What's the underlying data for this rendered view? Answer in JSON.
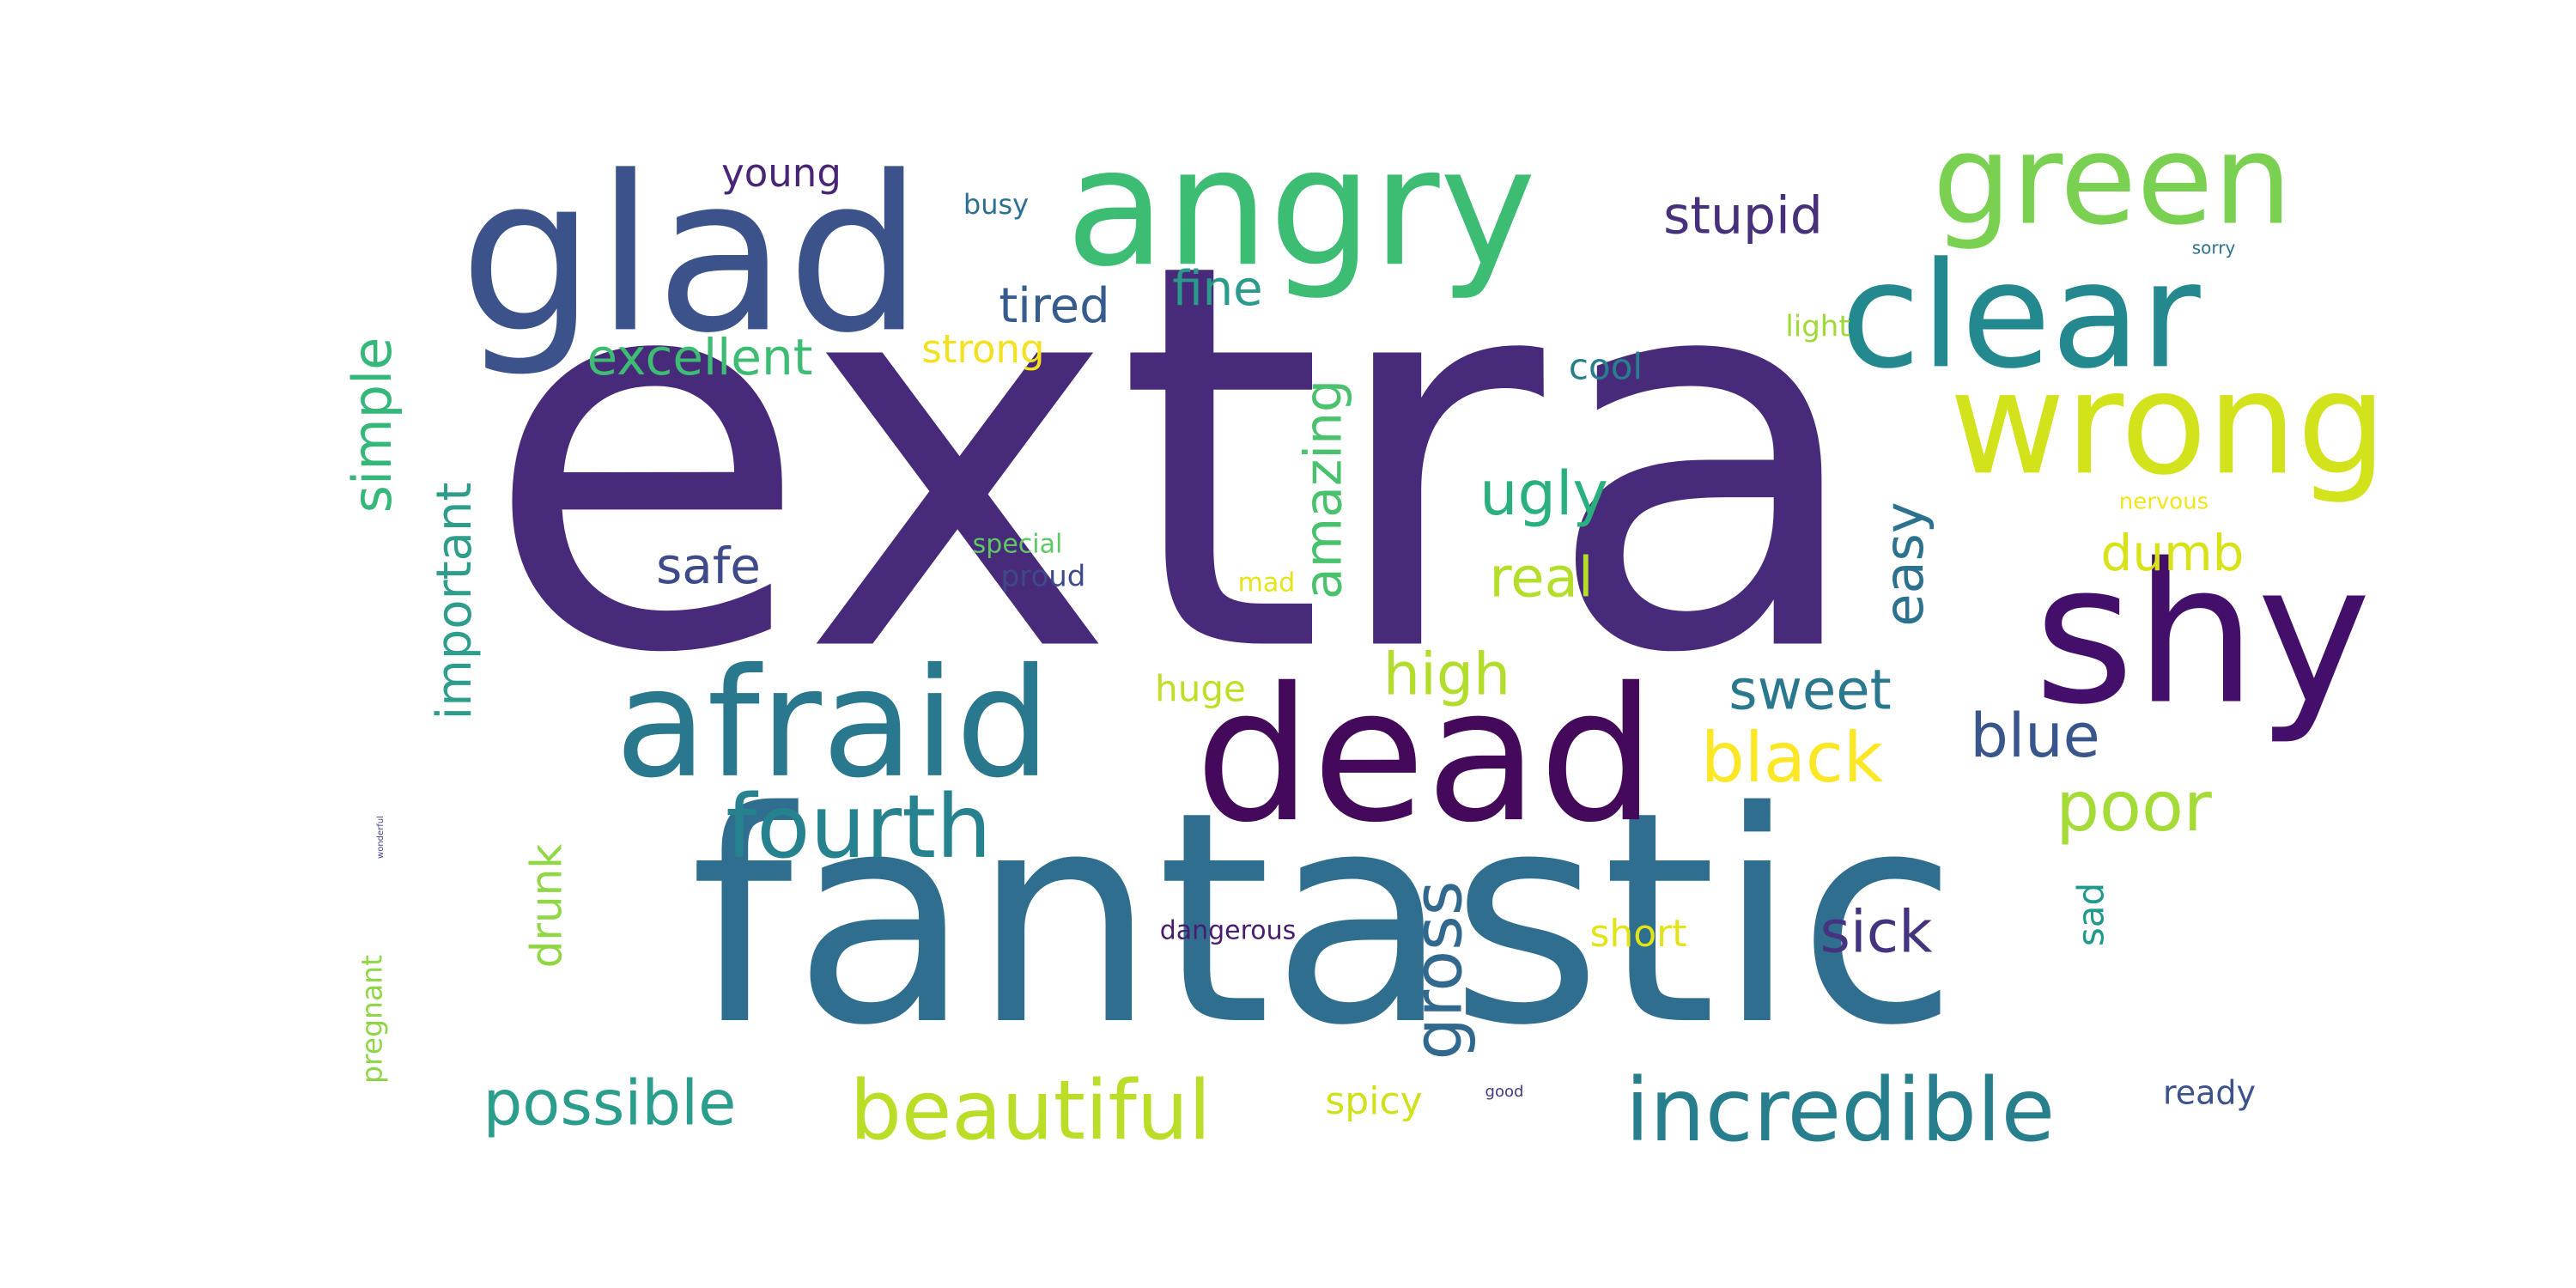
{
  "words": [
    {
      "text": "extra",
      "color": "#472a7a",
      "rotated": false
    },
    {
      "text": "fantastic",
      "color": "#2f6e8e",
      "rotated": false
    },
    {
      "text": "glad",
      "color": "#3b528b",
      "rotated": false
    },
    {
      "text": "angry",
      "color": "#3dbc74",
      "rotated": false
    },
    {
      "text": "clear",
      "color": "#23898e",
      "rotated": false
    },
    {
      "text": "green",
      "color": "#7ad151",
      "rotated": false
    },
    {
      "text": "wrong",
      "color": "#d2e21b",
      "rotated": false
    },
    {
      "text": "shy",
      "color": "#440f6a",
      "rotated": false
    },
    {
      "text": "dead",
      "color": "#44095a",
      "rotated": false
    },
    {
      "text": "afraid",
      "color": "#2a788e",
      "rotated": false
    },
    {
      "text": "simple",
      "color": "#35b779",
      "rotated": true
    },
    {
      "text": "amazing",
      "color": "#4ac16d",
      "rotated": true
    },
    {
      "text": "important",
      "color": "#2e9d8c",
      "rotated": true
    },
    {
      "text": "excellent",
      "color": "#3ebc73",
      "rotated": false
    },
    {
      "text": "strong",
      "color": "#f3e01f",
      "rotated": false
    },
    {
      "text": "tired",
      "color": "#365c8d",
      "rotated": false
    },
    {
      "text": "fine",
      "color": "#2a9b8b",
      "rotated": false
    },
    {
      "text": "young",
      "color": "#482576",
      "rotated": false
    },
    {
      "text": "busy",
      "color": "#2d708e",
      "rotated": false
    },
    {
      "text": "stupid",
      "color": "#46307c",
      "rotated": false
    },
    {
      "text": "light",
      "color": "#9fda3a",
      "rotated": false
    },
    {
      "text": "sorry",
      "color": "#2d718e",
      "rotated": false
    },
    {
      "text": "cool",
      "color": "#277f8e",
      "rotated": false
    },
    {
      "text": "ugly",
      "color": "#2ab07f",
      "rotated": false
    },
    {
      "text": "nervous",
      "color": "#f1e51d",
      "rotated": false
    },
    {
      "text": "dumb",
      "color": "#d8e219",
      "rotated": false
    },
    {
      "text": "easy",
      "color": "#2c728e",
      "rotated": true
    },
    {
      "text": "real",
      "color": "#b5de2b",
      "rotated": false
    },
    {
      "text": "safe",
      "color": "#3e4a89",
      "rotated": false
    },
    {
      "text": "special",
      "color": "#5ec962",
      "rotated": false
    },
    {
      "text": "proud",
      "color": "#3e4989",
      "rotated": false
    },
    {
      "text": "mad",
      "color": "#e5e419",
      "rotated": false
    },
    {
      "text": "high",
      "color": "#b2dd2d",
      "rotated": false
    },
    {
      "text": "huge",
      "color": "#bddf26",
      "rotated": false
    },
    {
      "text": "sweet",
      "color": "#2a788e",
      "rotated": false
    },
    {
      "text": "black",
      "color": "#fde725",
      "rotated": false
    },
    {
      "text": "blue",
      "color": "#39568c",
      "rotated": false
    },
    {
      "text": "poor",
      "color": "#a5db36",
      "rotated": false
    },
    {
      "text": "fourth",
      "color": "#26828e",
      "rotated": false
    },
    {
      "text": "gross",
      "color": "#31688e",
      "rotated": true
    },
    {
      "text": "sick",
      "color": "#46337f",
      "rotated": false
    },
    {
      "text": "drunk",
      "color": "#8fd744",
      "rotated": true
    },
    {
      "text": "dangerous",
      "color": "#481c6e",
      "rotated": false
    },
    {
      "text": "short",
      "color": "#e2e418",
      "rotated": false
    },
    {
      "text": "sad",
      "color": "#1f9a8a",
      "rotated": true
    },
    {
      "text": "pregnant",
      "color": "#8ed645",
      "rotated": true
    },
    {
      "text": "possible",
      "color": "#2a9d8c",
      "rotated": false
    },
    {
      "text": "beautiful",
      "color": "#bade28",
      "rotated": false
    },
    {
      "text": "spicy",
      "color": "#d0e11c",
      "rotated": false
    },
    {
      "text": "good",
      "color": "#443a83",
      "rotated": false
    },
    {
      "text": "incredible",
      "color": "#277f8e",
      "rotated": false
    },
    {
      "text": "ready",
      "color": "#3b528b",
      "rotated": false
    },
    {
      "text": "wonderful",
      "color": "#414487",
      "rotated": true
    }
  ]
}
